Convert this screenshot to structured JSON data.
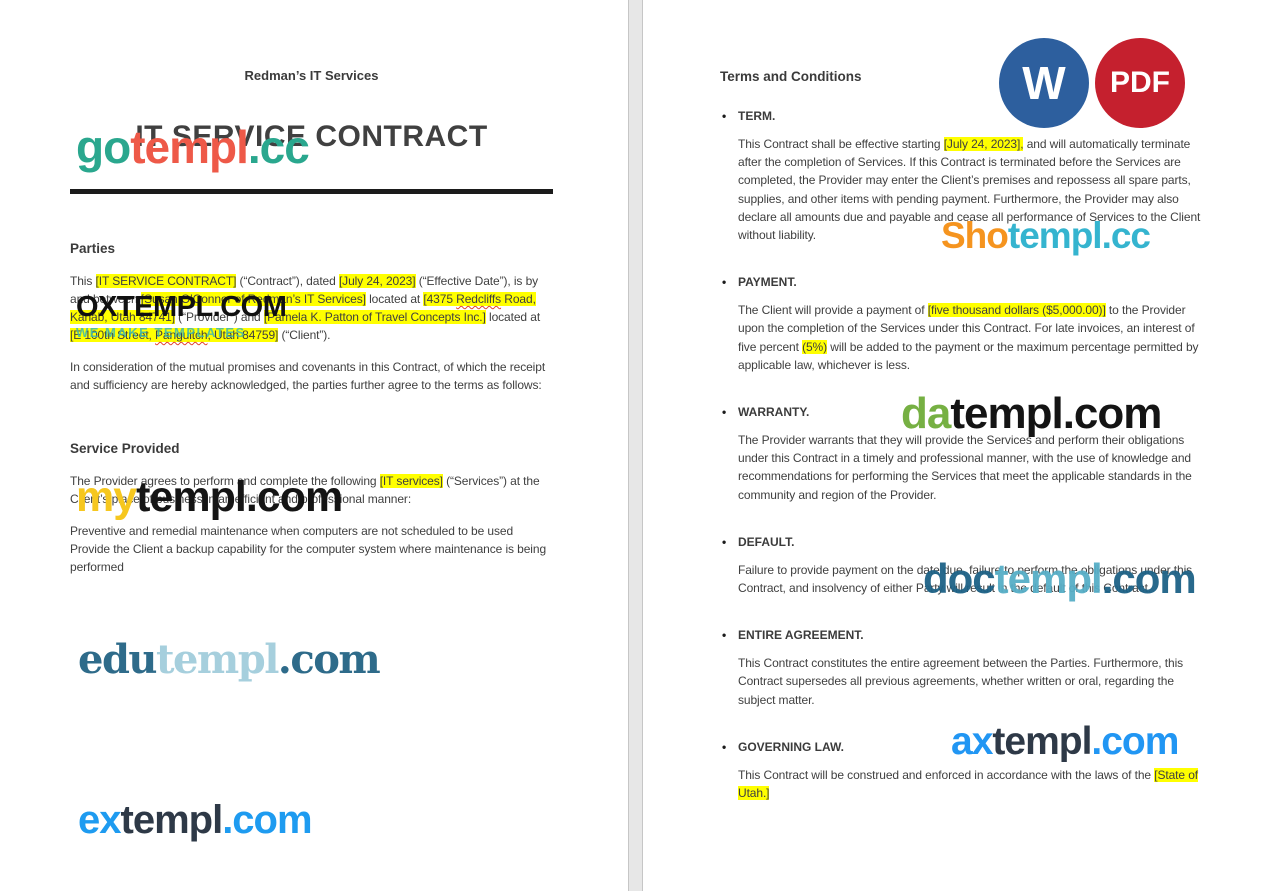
{
  "colors": {
    "highlight": "#ffff00",
    "text": "#3f3f3f"
  },
  "icons": {
    "word": {
      "label": "W",
      "color": "#2d5f9e"
    },
    "pdf": {
      "label": "PDF",
      "color": "#c5202e"
    }
  },
  "page_left": {
    "header": "Redman’s IT Services",
    "title": "IT SERVICE CONTRACT",
    "parties_heading": "Parties",
    "parties_par1": [
      {
        "t": "This "
      },
      {
        "t": "[IT SERVICE CONTRACT]",
        "h": true
      },
      {
        "t": " (“Contract”), dated "
      },
      {
        "t": "[July 24, 2023]",
        "h": true
      },
      {
        "t": " (“Effective Date”), is by and between "
      },
      {
        "t": "[Susan O’Connor of Redman’s IT Services]",
        "h": true
      },
      {
        "t": " located at "
      },
      {
        "t": "[4375 ",
        "h": true
      },
      {
        "t": "Redcliffs",
        "h": true,
        "sq": true
      },
      {
        "t": " Road, Kanab, Utah 84741]",
        "h": true
      },
      {
        "t": " (“Provider”) and "
      },
      {
        "t": "[Pamela K. Patton of Travel Concepts Inc.]",
        "h": true
      },
      {
        "t": " located at "
      },
      {
        "t": "[E 100th Street, ",
        "h": true
      },
      {
        "t": "Panguitch",
        "h": true,
        "sq": true
      },
      {
        "t": ", Utah 84759]",
        "h": true
      },
      {
        "t": " (“Client”)."
      }
    ],
    "parties_par2": "In consideration of the mutual promises and covenants in this Contract, of which the receipt and sufficiency are hereby acknowledged, the parties further agree to the terms as follows:",
    "service_heading": "Service Provided",
    "service_par1": [
      {
        "t": "The Provider agrees to perform and complete the following "
      },
      {
        "t": "[IT services]",
        "h": true
      },
      {
        "t": " (“Services”) at the Client’s place of business in an efficient and professional manner:"
      }
    ],
    "service_par2": [
      {
        "t": "Preventive and remedial maintenance when computers are not scheduled to be used"
      },
      {
        "br": true
      },
      {
        "t": "Provide the Client a backup capability for the computer system where maintenance is being performed"
      }
    ]
  },
  "page_right": {
    "heading": "Terms and Conditions",
    "items": [
      {
        "label": "TERM.",
        "body": [
          {
            "t": "This Contract shall be effective starting "
          },
          {
            "t": "[July 24, 2023],",
            "h": true
          },
          {
            "t": " and will automatically terminate after the completion of Services. If this Contract is terminated before the Services are completed, the Provider may enter the Client’s premises and repossess all spare parts, supplies, and other items with pending payment. Furthermore, the Provider may also declare all amounts due and payable and cease all performance of Services to the Client without liability."
          }
        ]
      },
      {
        "label": "PAYMENT.",
        "body": [
          {
            "t": "The Client will provide a payment of "
          },
          {
            "t": "[five thousand dollars ($5,000.00)]",
            "h": true
          },
          {
            "t": " to the Provider upon the completion of the Services under this Contract. For late invoices, an interest of five percent "
          },
          {
            "t": "(5%)",
            "h": true
          },
          {
            "t": " will be added to the payment or the maximum percentage permitted by applicable law, whichever is less."
          }
        ]
      },
      {
        "label": "WARRANTY.",
        "body": [
          {
            "t": "The Provider warrants that they will provide the Services and perform their obligations under this Contract in a timely and professional manner, with the use of knowledge and recommendations for performing the Services that meet the applicable standards in the community and region of the Provider."
          }
        ]
      },
      {
        "label": "DEFAULT.",
        "body": [
          {
            "t": "Failure to provide payment on the date due, failure to perform the obligations under this Contract, and insolvency of either Party will result in the default of this Contract."
          }
        ]
      },
      {
        "label": "ENTIRE AGREEMENT.",
        "body": [
          {
            "t": "This Contract constitutes the entire agreement between the Parties. Furthermore, this Contract supersedes all previous agreements, whether written or oral, regarding the subject matter."
          }
        ]
      },
      {
        "label": "GOVERNING LAW.",
        "body": [
          {
            "t": "This Contract will be construed and enforced in accordance with the laws of the "
          },
          {
            "t": "[State of Utah.]",
            "h": true
          }
        ]
      }
    ]
  },
  "watermarks": {
    "gotempl": {
      "parts": [
        {
          "text": "go",
          "color": "#2aa78e"
        },
        {
          "text": "templ",
          "color": "#ee5948"
        },
        {
          "text": ".cc",
          "color": "#2aa78e"
        }
      ]
    },
    "oxtempl": {
      "main": [
        {
          "text": "OXTEMPL.COM",
          "color": "#111111"
        }
      ],
      "tagline": [
        {
          "text": "WE MAKE TEMPLATES",
          "color": "#3cb8b2"
        }
      ]
    },
    "mytempl": {
      "parts": [
        {
          "text": "my",
          "color": "#f6c71f"
        },
        {
          "text": "templ.com",
          "color": "#141414"
        }
      ]
    },
    "edutempl": {
      "parts": [
        {
          "text": "edu",
          "color": "#2e6b8a"
        },
        {
          "text": "templ",
          "color": "#a6cfdd"
        },
        {
          "text": ".com",
          "color": "#2e6b8a"
        }
      ]
    },
    "extempl": {
      "parts": [
        {
          "text": "ex",
          "color": "#1e9bf0"
        },
        {
          "text": "templ",
          "color": "#2e3947"
        },
        {
          "text": ".com",
          "color": "#1e9bf0"
        }
      ]
    },
    "shotempl": {
      "parts": [
        {
          "text": "Sho",
          "color": "#f5941f"
        },
        {
          "text": "templ.cc",
          "color": "#35b4cf"
        }
      ]
    },
    "datempl": {
      "parts": [
        {
          "text": "da",
          "color": "#76b043"
        },
        {
          "text": "templ.com",
          "color": "#141414"
        }
      ]
    },
    "doctempl": {
      "parts": [
        {
          "text": "doc",
          "color": "#1d6286"
        },
        {
          "text": "templ",
          "color": "#57aec7"
        },
        {
          "text": ".com",
          "color": "#1d6286"
        }
      ]
    },
    "axtempl": {
      "parts": [
        {
          "text": "ax",
          "color": "#2196f3"
        },
        {
          "text": "templ",
          "color": "#2e3947"
        },
        {
          "text": ".com",
          "color": "#2196f3"
        }
      ]
    }
  }
}
